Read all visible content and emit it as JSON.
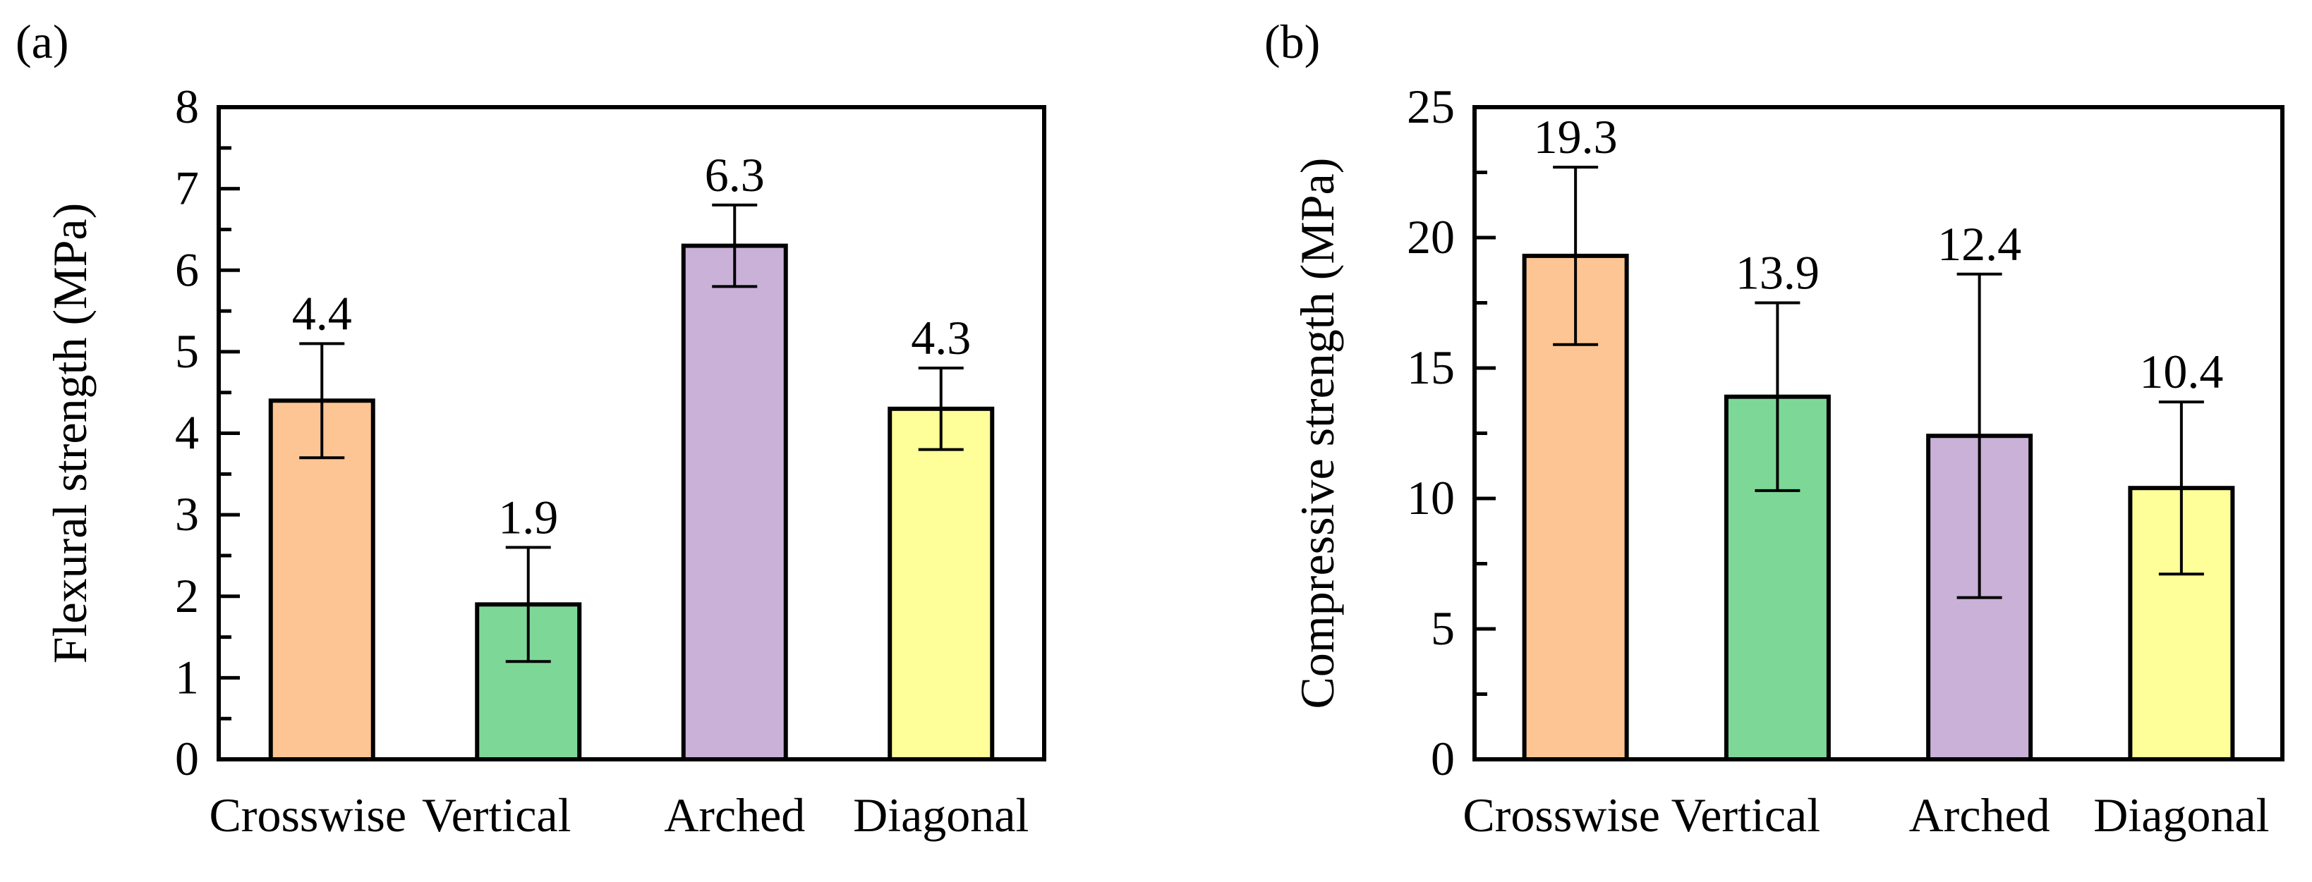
{
  "chart_data": [
    {
      "panel": "(a)",
      "type": "bar",
      "categories": [
        "Crosswise",
        "Vertical",
        "Arched",
        "Diagonal"
      ],
      "values": [
        4.4,
        1.9,
        6.3,
        4.3
      ],
      "errors": [
        0.7,
        0.7,
        0.5,
        0.5
      ],
      "data_labels": [
        "4.4",
        "1.9",
        "6.3",
        "4.3"
      ],
      "colors": [
        "#FDC593",
        "#7DD898",
        "#C9B1D8",
        "#FFFF99"
      ],
      "ylabel": "Flexural strength (MPa)",
      "xlabel": "",
      "ylim": [
        0,
        8
      ],
      "yticks": [
        0,
        1,
        2,
        3,
        4,
        5,
        6,
        7,
        8
      ],
      "ytick_labels": [
        "0",
        "1",
        "2",
        "3",
        "4",
        "5",
        "6",
        "7",
        "8"
      ],
      "minor_step": 0.5,
      "grid": false,
      "legend": "none"
    },
    {
      "panel": "(b)",
      "type": "bar",
      "categories": [
        "Crosswise",
        "Vertical",
        "Arched",
        "Diagonal"
      ],
      "values": [
        19.3,
        13.9,
        12.4,
        10.4
      ],
      "errors": [
        3.4,
        3.6,
        6.2,
        3.3
      ],
      "data_labels": [
        "19.3",
        "13.9",
        "12.4",
        "10.4"
      ],
      "colors": [
        "#FDC593",
        "#7DD898",
        "#C9B1D8",
        "#FFFF99"
      ],
      "ylabel": "Compressive strength (MPa)",
      "xlabel": "",
      "ylim": [
        0,
        25
      ],
      "yticks": [
        0,
        5,
        10,
        15,
        20,
        25
      ],
      "ytick_labels": [
        "0",
        "5",
        "10",
        "15",
        "20",
        "25"
      ],
      "minor_step": 2.5,
      "grid": false,
      "legend": "none"
    }
  ]
}
